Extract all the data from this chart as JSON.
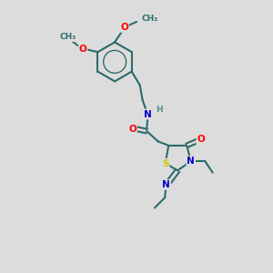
{
  "background_color": "#dcdcdc",
  "bond_color": "#2d6b6b",
  "bond_width": 1.5,
  "atom_colors": {
    "O": "#ff0000",
    "N": "#0000cc",
    "S": "#cccc00",
    "H": "#4a9090",
    "C": "#2d6b6b"
  },
  "fs": 7.5,
  "fs_small": 6.5
}
